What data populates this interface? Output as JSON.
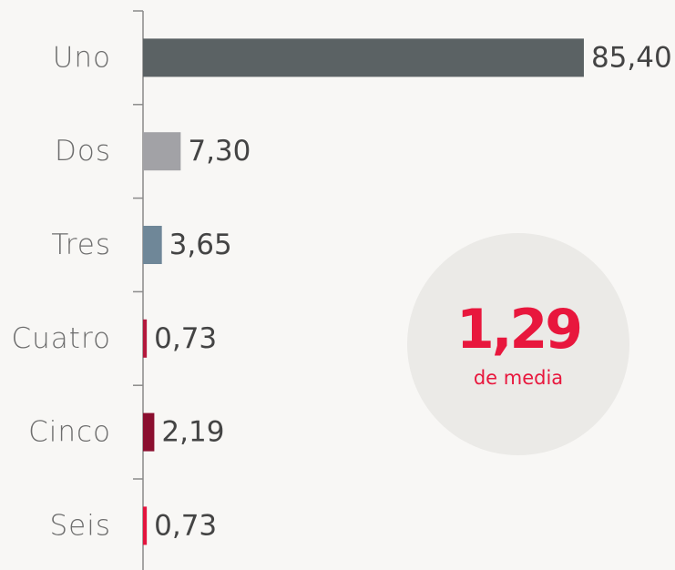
{
  "chart_data": {
    "type": "bar",
    "orientation": "horizontal",
    "categories": [
      "Uno",
      "Dos",
      "Tres",
      "Cuatro",
      "Cinco",
      "Seis"
    ],
    "values": [
      85.4,
      7.3,
      3.65,
      0.73,
      2.19,
      0.73
    ],
    "value_labels": [
      "85,40",
      "7,30",
      "3,65",
      "0,73",
      "2,19",
      "0,73"
    ],
    "colors": [
      "#5b6264",
      "#a2a2a6",
      "#6f8798",
      "#b3183c",
      "#8b0f2f",
      "#e3143d"
    ],
    "annotation": {
      "value": "1,29",
      "label": "de media"
    }
  }
}
